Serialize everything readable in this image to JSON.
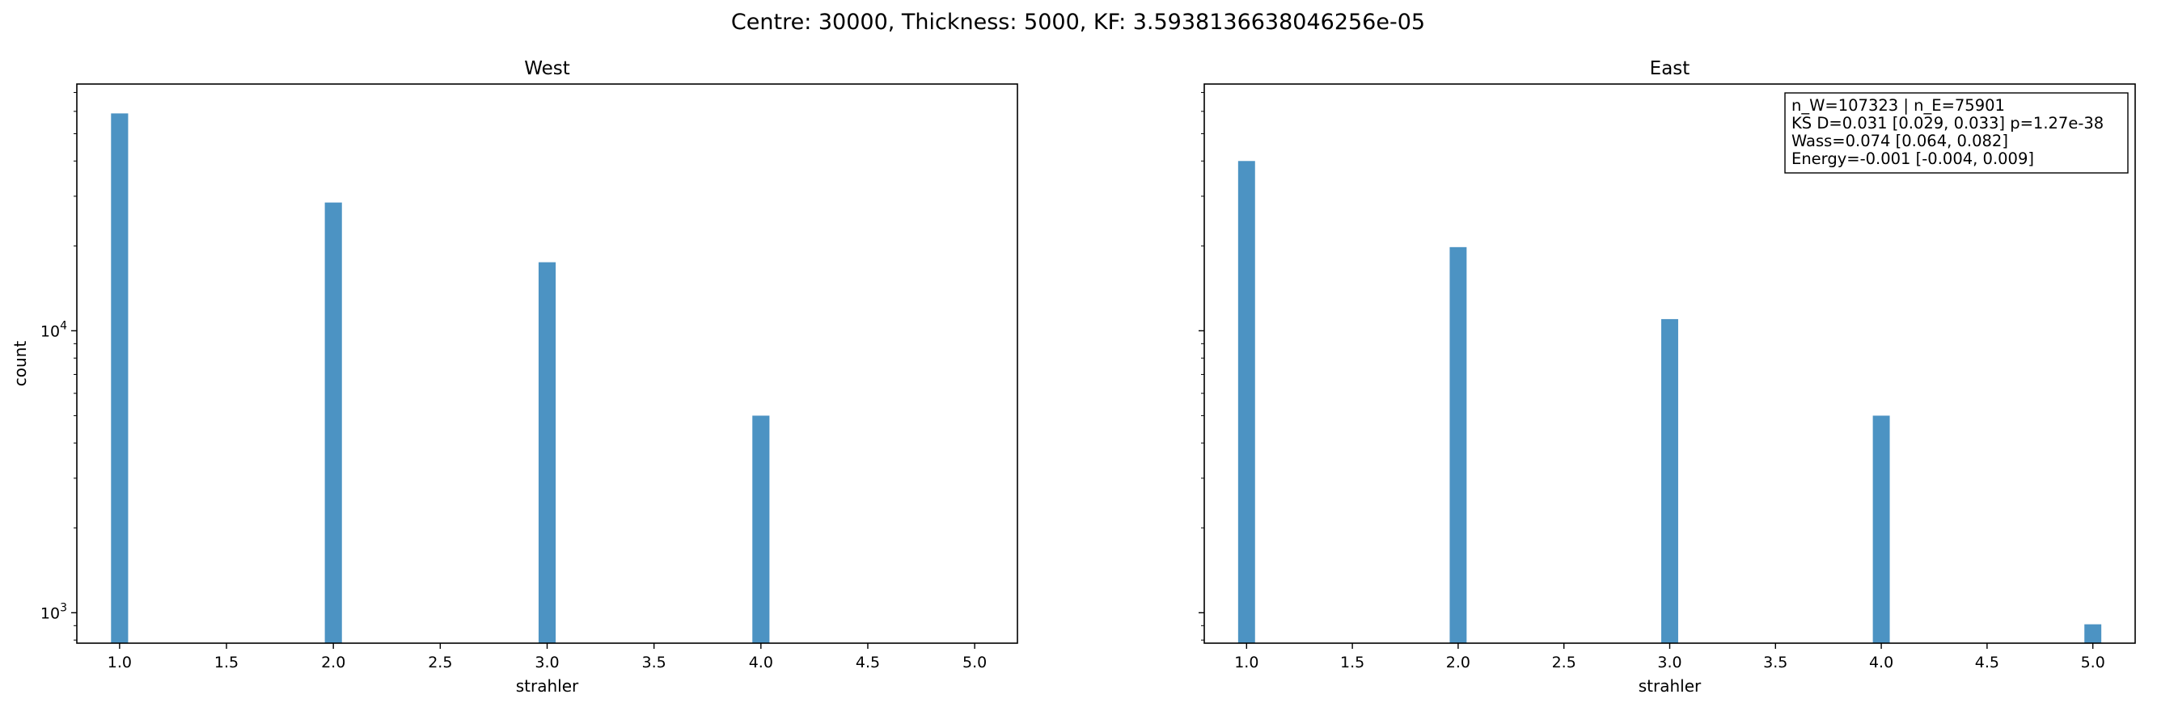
{
  "figure": {
    "suptitle": "Centre: 30000, Thickness: 5000, KF: 3.5938136638046256e-05"
  },
  "chart_data": [
    {
      "type": "bar",
      "title": "West",
      "xlabel": "strahler",
      "ylabel": "count",
      "yscale": "log",
      "xlim": [
        0.8,
        5.2
      ],
      "ylim": [
        780,
        75000
      ],
      "x_ticks": [
        "1.0",
        "1.5",
        "2.0",
        "2.5",
        "3.0",
        "3.5",
        "4.0",
        "4.5",
        "5.0"
      ],
      "y_ticks": [
        {
          "value": 1000,
          "base": "10",
          "exp": "3"
        },
        {
          "value": 10000,
          "base": "10",
          "exp": "4"
        }
      ],
      "categories": [
        1,
        2,
        3,
        4,
        5
      ],
      "values": [
        59000,
        28500,
        17500,
        5000,
        0
      ],
      "color": "#4c93c3",
      "bar_width": 0.08
    },
    {
      "type": "bar",
      "title": "East",
      "xlabel": "strahler",
      "ylabel": "",
      "yscale": "log",
      "xlim": [
        0.8,
        5.2
      ],
      "ylim": [
        780,
        75000
      ],
      "x_ticks": [
        "1.0",
        "1.5",
        "2.0",
        "2.5",
        "3.0",
        "3.5",
        "4.0",
        "4.5",
        "5.0"
      ],
      "y_ticks": [],
      "categories": [
        1,
        2,
        3,
        4,
        5
      ],
      "values": [
        40000,
        19800,
        11000,
        5000,
        910
      ],
      "color": "#4c93c3",
      "bar_width": 0.08,
      "annotation": [
        "n_W=107323 | n_E=75901",
        "KS D=0.031 [0.029, 0.033]  p=1.27e-38",
        "Wass=0.074 [0.064, 0.082]",
        "Energy=-0.001 [-0.004, 0.009]"
      ]
    }
  ]
}
